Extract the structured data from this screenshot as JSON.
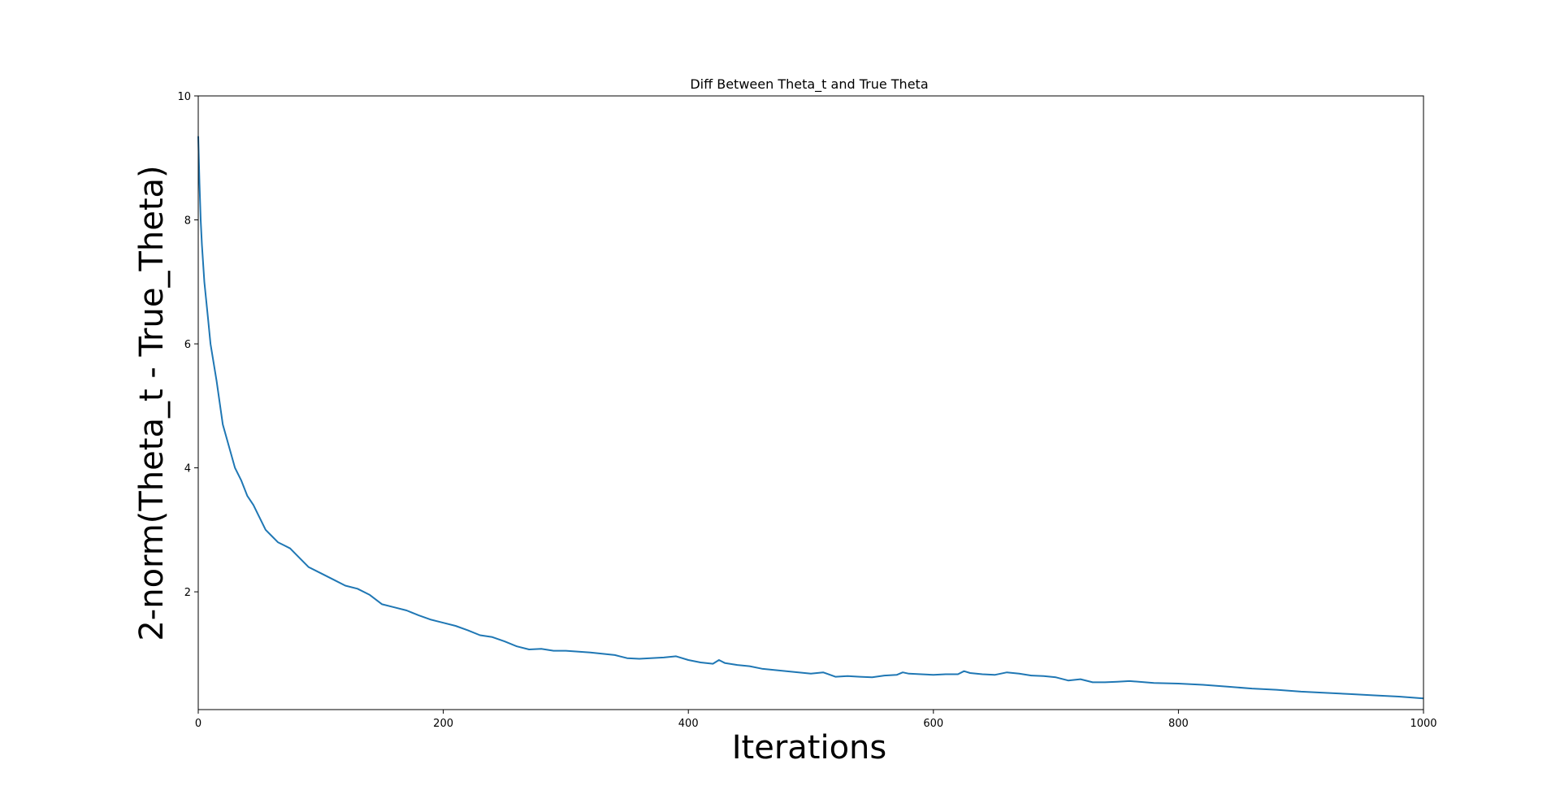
{
  "chart_data": {
    "type": "line",
    "title": "Diff Between Theta_t and True Theta",
    "xlabel": "Iterations",
    "ylabel": "2-norm(Theta_t - True_Theta)",
    "xlim": [
      0,
      1000
    ],
    "ylim": [
      0.1,
      10
    ],
    "x_ticks": [
      "0",
      "200",
      "400",
      "600",
      "800",
      "1000"
    ],
    "y_ticks": [
      "2",
      "4",
      "6",
      "8",
      "10"
    ],
    "grid": false,
    "legend": "none",
    "series": [
      {
        "color": "#1f77b4",
        "x": [
          0,
          1,
          2,
          3,
          5,
          8,
          10,
          15,
          20,
          25,
          30,
          35,
          40,
          45,
          50,
          55,
          60,
          65,
          70,
          75,
          80,
          90,
          100,
          110,
          120,
          130,
          140,
          150,
          160,
          170,
          180,
          190,
          200,
          210,
          220,
          230,
          240,
          250,
          260,
          270,
          280,
          290,
          300,
          320,
          340,
          350,
          360,
          380,
          390,
          400,
          410,
          420,
          425,
          430,
          440,
          450,
          460,
          480,
          500,
          510,
          520,
          530,
          540,
          550,
          560,
          570,
          575,
          580,
          590,
          600,
          610,
          620,
          625,
          630,
          640,
          650,
          660,
          670,
          680,
          690,
          700,
          710,
          720,
          730,
          740,
          750,
          760,
          780,
          800,
          820,
          840,
          860,
          880,
          900,
          920,
          940,
          960,
          980,
          1000
        ],
        "y": [
          9.35,
          8.6,
          8.0,
          7.6,
          7.0,
          6.4,
          6.0,
          5.4,
          4.7,
          4.35,
          4.0,
          3.8,
          3.55,
          3.4,
          3.2,
          3.0,
          2.9,
          2.8,
          2.75,
          2.7,
          2.6,
          2.4,
          2.3,
          2.2,
          2.1,
          2.05,
          1.95,
          1.8,
          1.75,
          1.7,
          1.62,
          1.55,
          1.5,
          1.45,
          1.38,
          1.3,
          1.27,
          1.2,
          1.12,
          1.07,
          1.08,
          1.05,
          1.05,
          1.02,
          0.98,
          0.93,
          0.92,
          0.94,
          0.96,
          0.9,
          0.86,
          0.84,
          0.9,
          0.85,
          0.82,
          0.8,
          0.76,
          0.72,
          0.68,
          0.7,
          0.63,
          0.64,
          0.63,
          0.62,
          0.65,
          0.66,
          0.7,
          0.68,
          0.67,
          0.66,
          0.67,
          0.67,
          0.72,
          0.69,
          0.67,
          0.66,
          0.7,
          0.68,
          0.65,
          0.64,
          0.62,
          0.57,
          0.59,
          0.54,
          0.54,
          0.55,
          0.56,
          0.53,
          0.52,
          0.5,
          0.47,
          0.44,
          0.42,
          0.39,
          0.37,
          0.35,
          0.33,
          0.31,
          0.28
        ]
      }
    ]
  }
}
